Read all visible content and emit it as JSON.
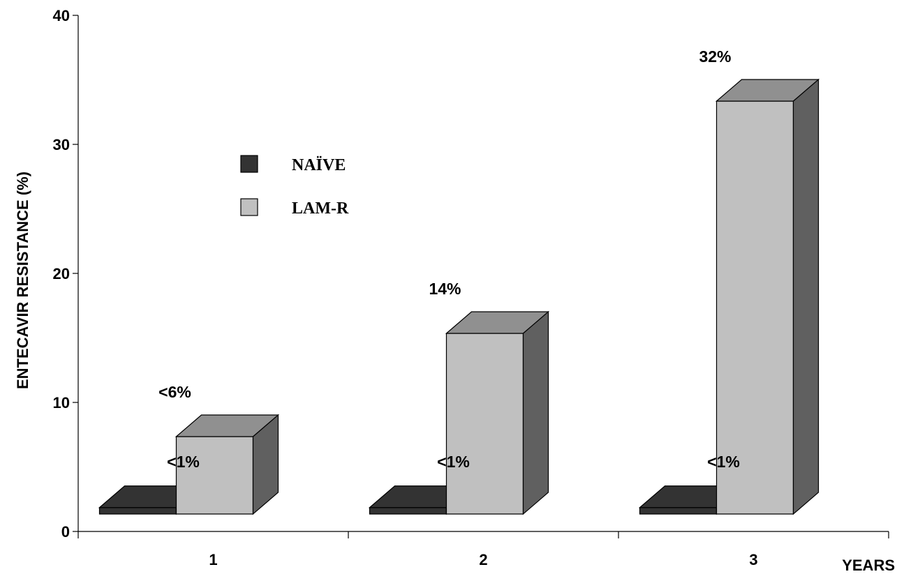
{
  "chart_data": {
    "type": "bar",
    "categories": [
      "1",
      "2",
      "3"
    ],
    "xlabel": "YEARS",
    "ylabel": "ENTECAVIR RESISTANCE (%)",
    "ylim": [
      0,
      40
    ],
    "yticks": [
      "0",
      "10",
      "20",
      "30",
      "40"
    ],
    "legend_position": "upper-left",
    "three_d": true,
    "series": [
      {
        "name": "NAÏVE",
        "values": [
          0.5,
          0.5,
          0.5
        ],
        "labels": [
          "<1%",
          "<1%",
          "<1%"
        ],
        "color": "#333333"
      },
      {
        "name": "LAM-R",
        "values": [
          6,
          14,
          32
        ],
        "labels": [
          "<6%",
          "14%",
          "32%"
        ],
        "color": "#c0c0c0"
      }
    ]
  }
}
